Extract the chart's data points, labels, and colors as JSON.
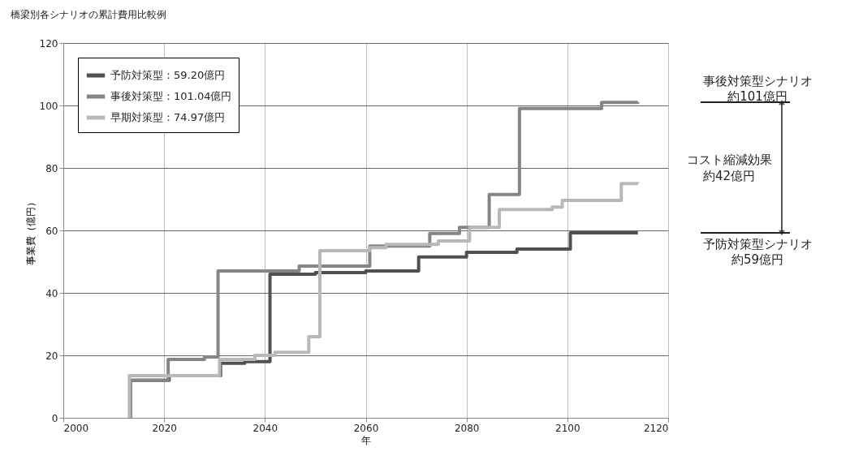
{
  "chart_data": {
    "type": "step",
    "title": "橋梁別各シナリオの累計費用比較例",
    "xlabel": "年",
    "ylabel": "事業費（億円）",
    "xlim": [
      2000,
      2120
    ],
    "xticks": [
      2000,
      2020,
      2040,
      2060,
      2080,
      2100,
      2120
    ],
    "ylim": [
      0,
      120
    ],
    "yticks": [
      0,
      20,
      40,
      60,
      80,
      100,
      120
    ],
    "grid": true,
    "legend": "top left",
    "line_style": "solid",
    "marker": "none",
    "series": [
      {
        "name": "予防対策型：59.20億円",
        "color": "#505050",
        "x": [
          2013.3,
          2013.3,
          2021,
          2031.2,
          2036,
          2041,
          2050,
          2060,
          2070.5,
          2080,
          2090,
          2100.6,
          2114
        ],
        "values": [
          0,
          12,
          13.5,
          17.5,
          18,
          46,
          46.5,
          47,
          51.5,
          53,
          54,
          59.2,
          59.2
        ]
      },
      {
        "name": "事後対策型：101.04億円",
        "color": "#858585",
        "x": [
          2013.3,
          2013.3,
          2020.8,
          2028,
          2030.7,
          2046.8,
          2060.8,
          2072.7,
          2078.6,
          2084.5,
          2090.5,
          2106.8,
          2114
        ],
        "values": [
          0,
          12,
          18.7,
          19.5,
          47,
          48.6,
          55,
          59,
          61,
          71.5,
          99,
          101,
          101.04
        ]
      },
      {
        "name": "早期対策型：74.97億円",
        "color": "#b8b8b8",
        "x": [
          2013.1,
          2013.1,
          2031,
          2038,
          2042,
          2048.7,
          2050.9,
          2060.8,
          2064,
          2074.4,
          2080.6,
          2086.5,
          2097,
          2099,
          2110.7,
          2114
        ],
        "values": [
          0,
          13.5,
          18.7,
          20,
          21,
          26,
          53.5,
          54.5,
          55.5,
          56.6,
          61,
          66.7,
          67.5,
          69.6,
          75,
          74.97
        ]
      }
    ],
    "annotations": [
      "事後対策型シナリオ",
      "約101億円",
      "コスト縮減効果",
      "約42億円",
      "予防対策型シナリオ",
      "約59億円"
    ]
  }
}
